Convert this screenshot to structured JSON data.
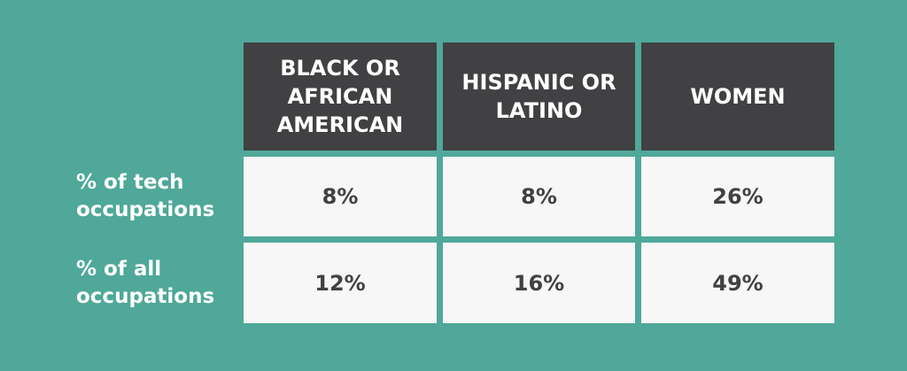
{
  "chart_data": {
    "type": "table",
    "columns": [
      "BLACK OR AFRICAN AMERICAN",
      "HISPANIC OR LATINO",
      "WOMEN"
    ],
    "rows": [
      {
        "label": "% of tech occupations",
        "values": [
          "8%",
          "8%",
          "26%"
        ]
      },
      {
        "label": "% of all occupations",
        "values": [
          "12%",
          "16%",
          "49%"
        ]
      }
    ]
  },
  "colors": {
    "background": "#4fa899",
    "header": "#414042",
    "cell": "#f7f7f7",
    "text_dark": "#414042"
  }
}
